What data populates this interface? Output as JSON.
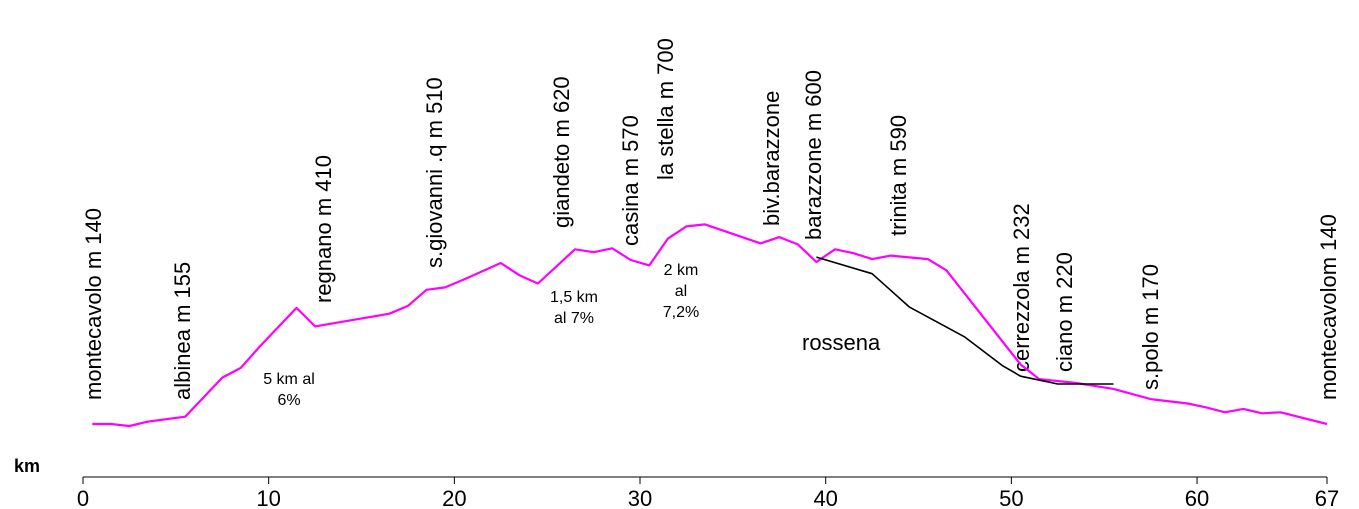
{
  "chart_data": {
    "type": "line",
    "title": "",
    "xlabel": "km",
    "ylabel": "",
    "xlim": [
      0,
      67
    ],
    "x_ticks": [
      {
        "value": 0,
        "label": "0"
      },
      {
        "value": 10,
        "label": "10"
      },
      {
        "value": 20,
        "label": "20"
      },
      {
        "value": 30,
        "label": "30"
      },
      {
        "value": 40,
        "label": "40"
      },
      {
        "value": 50,
        "label": "50"
      },
      {
        "value": 60,
        "label": "60"
      },
      {
        "value": 67,
        "label": "67"
      }
    ],
    "ylim": [
      100,
      740
    ],
    "grid": false,
    "series": [
      {
        "name": "",
        "color": "#ff00ff",
        "points": [
          [
            0.5,
            140
          ],
          [
            1.5,
            140
          ],
          [
            2.5,
            136
          ],
          [
            3.5,
            145
          ],
          [
            5.5,
            155
          ],
          [
            6.5,
            195
          ],
          [
            7.5,
            235
          ],
          [
            8.5,
            255
          ],
          [
            9.5,
            298
          ],
          [
            11.5,
            378
          ],
          [
            12.5,
            340
          ],
          [
            14.5,
            353
          ],
          [
            16.5,
            366
          ],
          [
            17.5,
            382
          ],
          [
            18.5,
            415
          ],
          [
            19.5,
            420
          ],
          [
            20.5,
            436
          ],
          [
            22.5,
            470
          ],
          [
            23.5,
            445
          ],
          [
            24.5,
            428
          ],
          [
            26.5,
            498
          ],
          [
            27.5,
            492
          ],
          [
            28.5,
            500
          ],
          [
            29.5,
            476
          ],
          [
            30.5,
            465
          ],
          [
            31.5,
            520
          ],
          [
            32.5,
            545
          ],
          [
            33.5,
            549
          ],
          [
            36.5,
            510
          ],
          [
            37.5,
            523
          ],
          [
            38.5,
            508
          ],
          [
            39.5,
            472
          ],
          [
            40.5,
            498
          ],
          [
            41.5,
            490
          ],
          [
            42.5,
            478
          ],
          [
            43.5,
            485
          ],
          [
            45.5,
            478
          ],
          [
            46.5,
            455
          ],
          [
            50.5,
            262
          ],
          [
            51.5,
            232
          ],
          [
            53.5,
            224
          ],
          [
            55.5,
            212
          ],
          [
            57.5,
            191
          ],
          [
            59.5,
            182
          ],
          [
            60.5,
            174
          ],
          [
            61.5,
            164
          ],
          [
            62.5,
            171
          ],
          [
            63.5,
            162
          ],
          [
            64.5,
            164
          ],
          [
            67,
            140
          ]
        ]
      },
      {
        "name": "rossena",
        "color": "#000000",
        "points": [
          [
            39.5,
            482
          ],
          [
            42.5,
            448
          ],
          [
            44.5,
            380
          ],
          [
            47.5,
            318
          ],
          [
            49.5,
            260
          ],
          [
            50.5,
            238
          ],
          [
            52.5,
            222
          ],
          [
            55.5,
            222
          ]
        ]
      }
    ],
    "place_labels": [
      {
        "x": 0.5,
        "text": "montecavolo m 140"
      },
      {
        "x": 5.5,
        "text": "albinea m 155"
      },
      {
        "x": 12.5,
        "text": "regnano m 410"
      },
      {
        "x": 19.5,
        "text": "s.giovanni .q m 510"
      },
      {
        "x": 26.5,
        "text": "giandeto m 620"
      },
      {
        "x": 30.5,
        "text": "casina m 570"
      },
      {
        "x": 32.5,
        "text": "la stella m 700"
      },
      {
        "x": 38.5,
        "text": "biv.barazzone"
      },
      {
        "x": 40.5,
        "text": "barazzone m 600"
      },
      {
        "x": 45.5,
        "text": "trinita m 590"
      },
      {
        "x": 52.5,
        "text": "cerrezzola m 232"
      },
      {
        "x": 54.5,
        "text": "ciano m 220"
      },
      {
        "x": 59.5,
        "text": "s.polo m 170"
      },
      {
        "x": 67,
        "text": "montecavolom 140"
      }
    ],
    "annotations": [
      {
        "x": 9.5,
        "alt": 230,
        "lines": [
          "5 km al",
          "6%"
        ]
      },
      {
        "x": 26.5,
        "alt": 393,
        "lines": [
          "1,5 km",
          "al 7%"
        ]
      },
      {
        "x": 32.5,
        "alt": 432,
        "lines": [
          "2 km",
          "al",
          "7,2%"
        ]
      }
    ],
    "series_label": {
      "x": 42.5,
      "alt": 330,
      "text": "rossena"
    }
  }
}
